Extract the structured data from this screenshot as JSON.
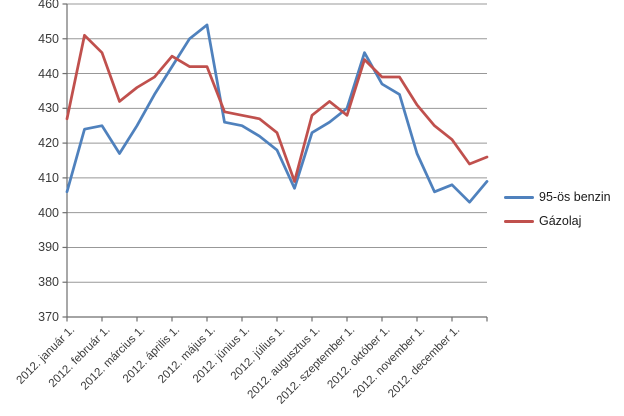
{
  "chart_data": {
    "type": "line",
    "title": "",
    "point_count": 25,
    "points_per_month": 2,
    "x_tick_labels": [
      "2012. január 1.",
      "2012. február 1.",
      "2012. március 1.",
      "2012. április 1.",
      "2012. május 1.",
      "2012. június 1.",
      "2012. július 1.",
      "2012. augusztus 1.",
      "2012. szeptember 1.",
      "2012. október 1.",
      "2012. november 1.",
      "2012. december 1."
    ],
    "y_tick_labels": [
      "460",
      "450",
      "440",
      "430",
      "420",
      "410",
      "400",
      "390",
      "380",
      "370"
    ],
    "ylim": [
      370,
      460
    ],
    "ytick_step": 10,
    "grid": true,
    "legend_position": "right",
    "series": [
      {
        "name": "95-ös benzin",
        "color": "#4F81BD",
        "values": [
          406,
          424,
          425,
          417,
          425,
          434,
          442,
          450,
          454,
          426,
          425,
          422,
          418,
          407,
          423,
          426,
          430,
          446,
          437,
          434,
          417,
          406,
          408,
          403,
          409
        ]
      },
      {
        "name": "Gázolaj",
        "color": "#C0504D",
        "values": [
          427,
          451,
          446,
          432,
          436,
          439,
          445,
          442,
          442,
          429,
          428,
          427,
          423,
          409,
          428,
          432,
          428,
          444,
          439,
          439,
          431,
          425,
          421,
          414,
          416
        ]
      }
    ],
    "style": {
      "grid_color": "#989898",
      "axis_color": "#6e6e6e",
      "text_color": "#3b3b3b",
      "line_width": 2.75
    }
  }
}
